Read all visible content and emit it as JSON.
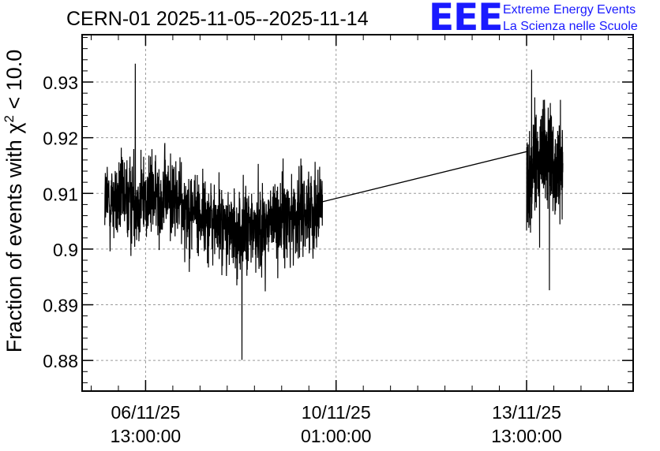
{
  "title": "CERN-01 2025-11-05--2025-11-14",
  "logo": {
    "mark": "EEE",
    "line1": "Extreme Energy Events",
    "line2": "La Scienza nelle Scuole",
    "color": "#1a1aff"
  },
  "chart_data": {
    "type": "line",
    "ylabel_prefix": "Fraction of events with ",
    "ylabel_symbol": "χ",
    "ylabel_exponent": "2",
    "ylabel_suffix": " < 10.0",
    "ylim": [
      0.8745,
      0.9385
    ],
    "yticks": [
      0.88,
      0.89,
      0.9,
      0.91,
      0.92,
      0.93
    ],
    "ytick_labels": [
      "0.88",
      "0.89",
      "0.9",
      "0.91",
      "0.92",
      "0.93"
    ],
    "xlim": [
      "2025-11-05 09:00",
      "2025-11-15 12:00"
    ],
    "xticks": [
      "2025-11-06 13:00",
      "2025-11-10 01:00",
      "2025-11-13 13:00"
    ],
    "xtick_labels": [
      [
        "06/11/25",
        "13:00:00"
      ],
      [
        "10/11/25",
        "01:00:00"
      ],
      [
        "13/11/25",
        "13:00:00"
      ]
    ],
    "grid": true,
    "line_color": "#000000",
    "segments": [
      {
        "start": "2025-11-05 19:00",
        "end": "2025-11-09 19:00",
        "trend": [
          [
            0.0,
            0.9085
          ],
          [
            0.3,
            0.9095
          ],
          [
            0.5,
            0.905
          ],
          [
            0.6,
            0.9025
          ],
          [
            0.75,
            0.9045
          ],
          [
            1.0,
            0.908
          ]
        ],
        "amplitude": 0.0055,
        "min": 0.8801,
        "max": 0.9333,
        "n_points": 1150
      },
      {
        "start": "2025-11-13 13:00",
        "end": "2025-11-14 05:00",
        "trend": [
          [
            0.0,
            0.9125
          ],
          [
            0.5,
            0.917
          ],
          [
            1.0,
            0.913
          ]
        ],
        "amplitude": 0.0065,
        "min": 0.8926,
        "max": 0.9322,
        "n_points": 360
      }
    ],
    "connector": [
      [
        "2025-11-09 19:00",
        0.9085
      ],
      [
        "2025-11-13 13:00",
        0.9175
      ]
    ]
  }
}
